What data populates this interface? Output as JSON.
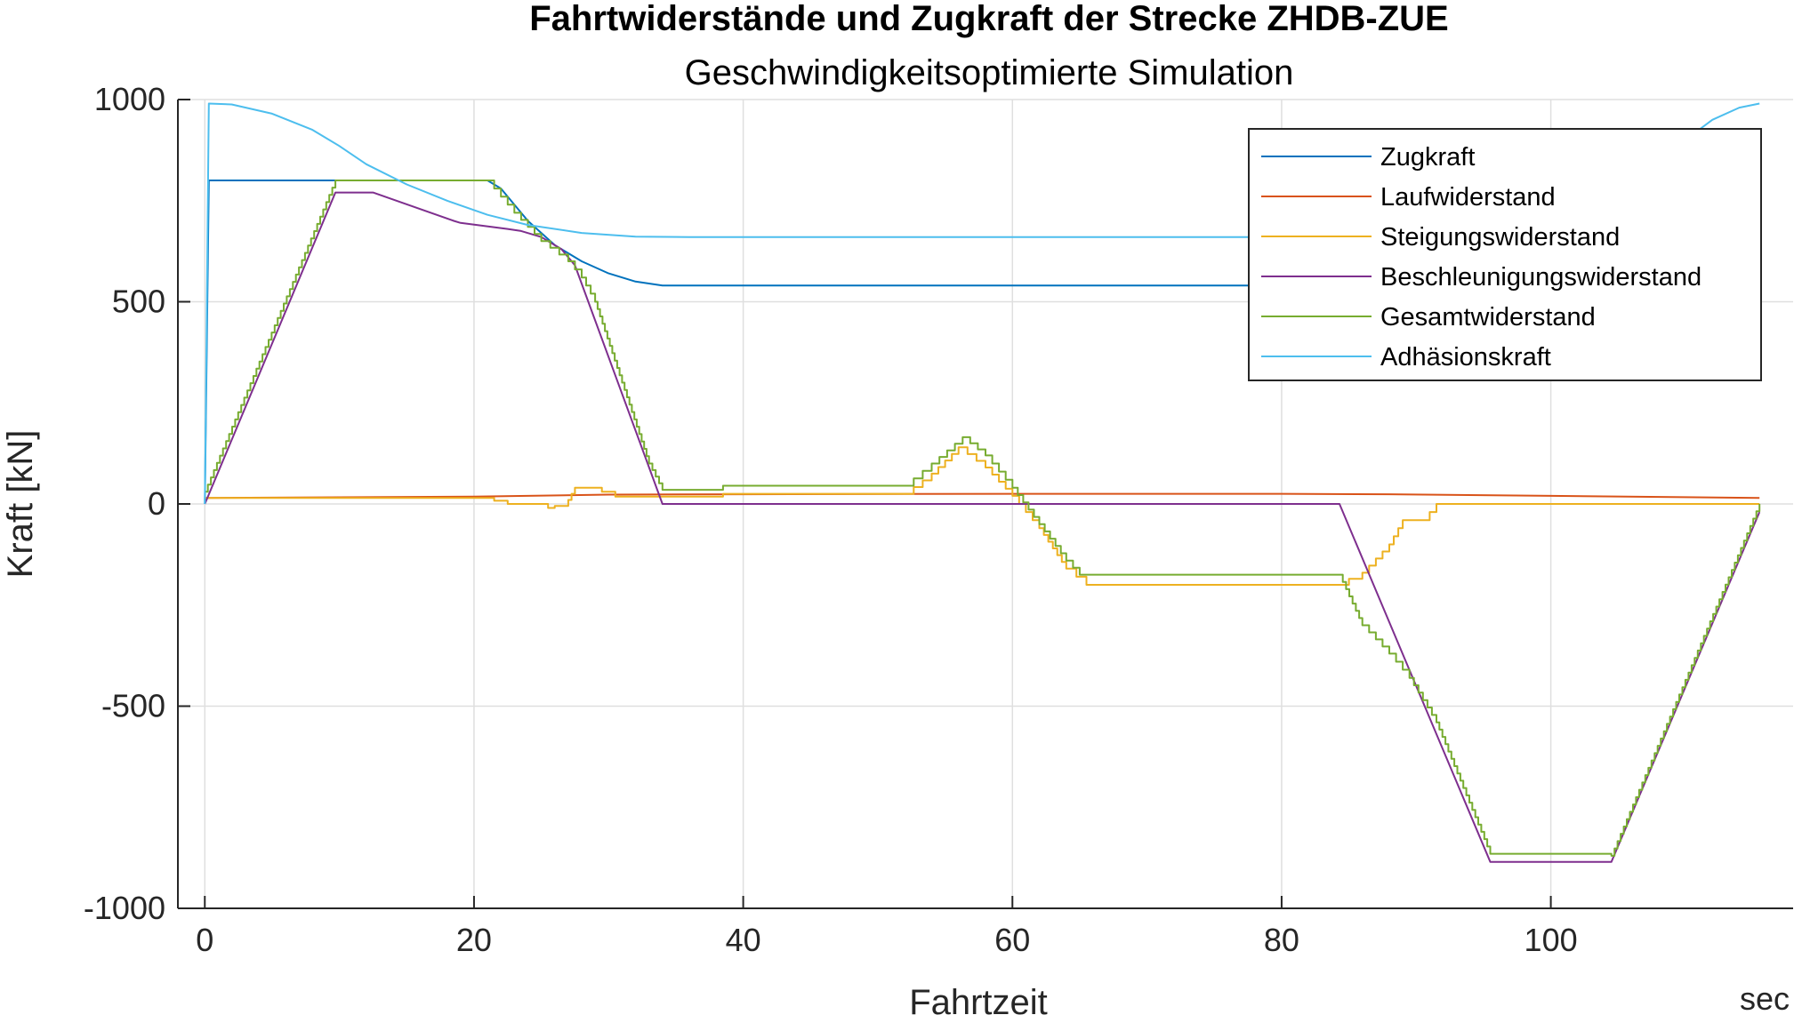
{
  "chart_data": {
    "type": "line",
    "title": "Fahrtwiderstände und Zugkraft der Strecke ZHDB-ZUE",
    "subtitle": "Geschwindigkeitsoptimierte Simulation",
    "xlabel": "Fahrtzeit",
    "xunit": "sec",
    "ylabel": "Kraft [kN]",
    "xlim": [
      -2,
      118
    ],
    "ylim": [
      -1000,
      1000
    ],
    "xticks": [
      0,
      20,
      40,
      60,
      80,
      100
    ],
    "yticks": [
      -1000,
      -500,
      0,
      500,
      1000
    ],
    "grid": true,
    "legend_position": "top-right",
    "series": [
      {
        "name": "Zugkraft",
        "color": "#0072BD",
        "x": [
          0,
          0.3,
          21,
          22,
          24,
          26,
          28,
          30,
          32,
          34,
          90
        ],
        "y": [
          0,
          800,
          800,
          780,
          700,
          640,
          600,
          570,
          550,
          540,
          540
        ]
      },
      {
        "name": "Laufwiderstand",
        "color": "#D95319",
        "x": [
          0,
          20,
          30,
          40,
          60,
          80,
          88,
          100,
          115.5
        ],
        "y": [
          15,
          18,
          23,
          24,
          25,
          25,
          24,
          20,
          15
        ]
      },
      {
        "name": "Steigungswiderstand",
        "color": "#EDB120",
        "x": [
          0,
          19,
          21.5,
          22.5,
          25.5,
          26,
          27,
          27.5,
          28.5,
          29.5,
          30.5,
          38,
          38.5,
          52,
          54,
          56,
          58,
          60,
          62,
          64,
          65.5,
          84,
          86,
          88,
          89,
          91,
          91.5,
          115.5
        ],
        "y": [
          15,
          15,
          8,
          0,
          -10,
          -5,
          10,
          40,
          40,
          30,
          18,
          18,
          25,
          25,
          75,
          140,
          90,
          20,
          -60,
          -160,
          -200,
          -200,
          -170,
          -100,
          -40,
          -20,
          0,
          0
        ],
        "step": true
      },
      {
        "name": "Beschleunigungswiderstand",
        "color": "#7E2F8E",
        "x": [
          0,
          9.7,
          12.5,
          18.5,
          19,
          22.5,
          23.5,
          25,
          26.5,
          27.5,
          34,
          84.3,
          95.5,
          104.5,
          115.5
        ],
        "y": [
          0,
          770,
          770,
          700,
          695,
          680,
          675,
          660,
          630,
          590,
          0,
          0,
          -885,
          -885,
          -20
        ]
      },
      {
        "name": "Gesamtwiderstand",
        "color": "#77AC30",
        "x": [
          0,
          9.7,
          21,
          23,
          25,
          27,
          28,
          29,
          31,
          33,
          34,
          38,
          38.5,
          52,
          54,
          56.3,
          58,
          60,
          62,
          64,
          65,
          84.3,
          86,
          88,
          89.5,
          91.5,
          95.5,
          104.5,
          115.5
        ],
        "y": [
          30,
          800,
          800,
          720,
          650,
          600,
          560,
          500,
          300,
          100,
          35,
          35,
          45,
          45,
          100,
          165,
          120,
          40,
          -50,
          -140,
          -175,
          -175,
          -300,
          -370,
          -430,
          -540,
          -865,
          -870,
          0
        ],
        "step": true
      },
      {
        "name": "Adhäsionskraft",
        "color": "#4DBEEE",
        "x": [
          0,
          0.3,
          2,
          5,
          8,
          10,
          12,
          15,
          18,
          21,
          24,
          28,
          32,
          36,
          60,
          89,
          109,
          110,
          112,
          114,
          115.5
        ],
        "y": [
          0,
          990,
          988,
          965,
          925,
          885,
          840,
          790,
          750,
          715,
          690,
          670,
          661,
          660,
          660,
          660,
          660,
          900,
          950,
          980,
          990
        ]
      }
    ]
  }
}
